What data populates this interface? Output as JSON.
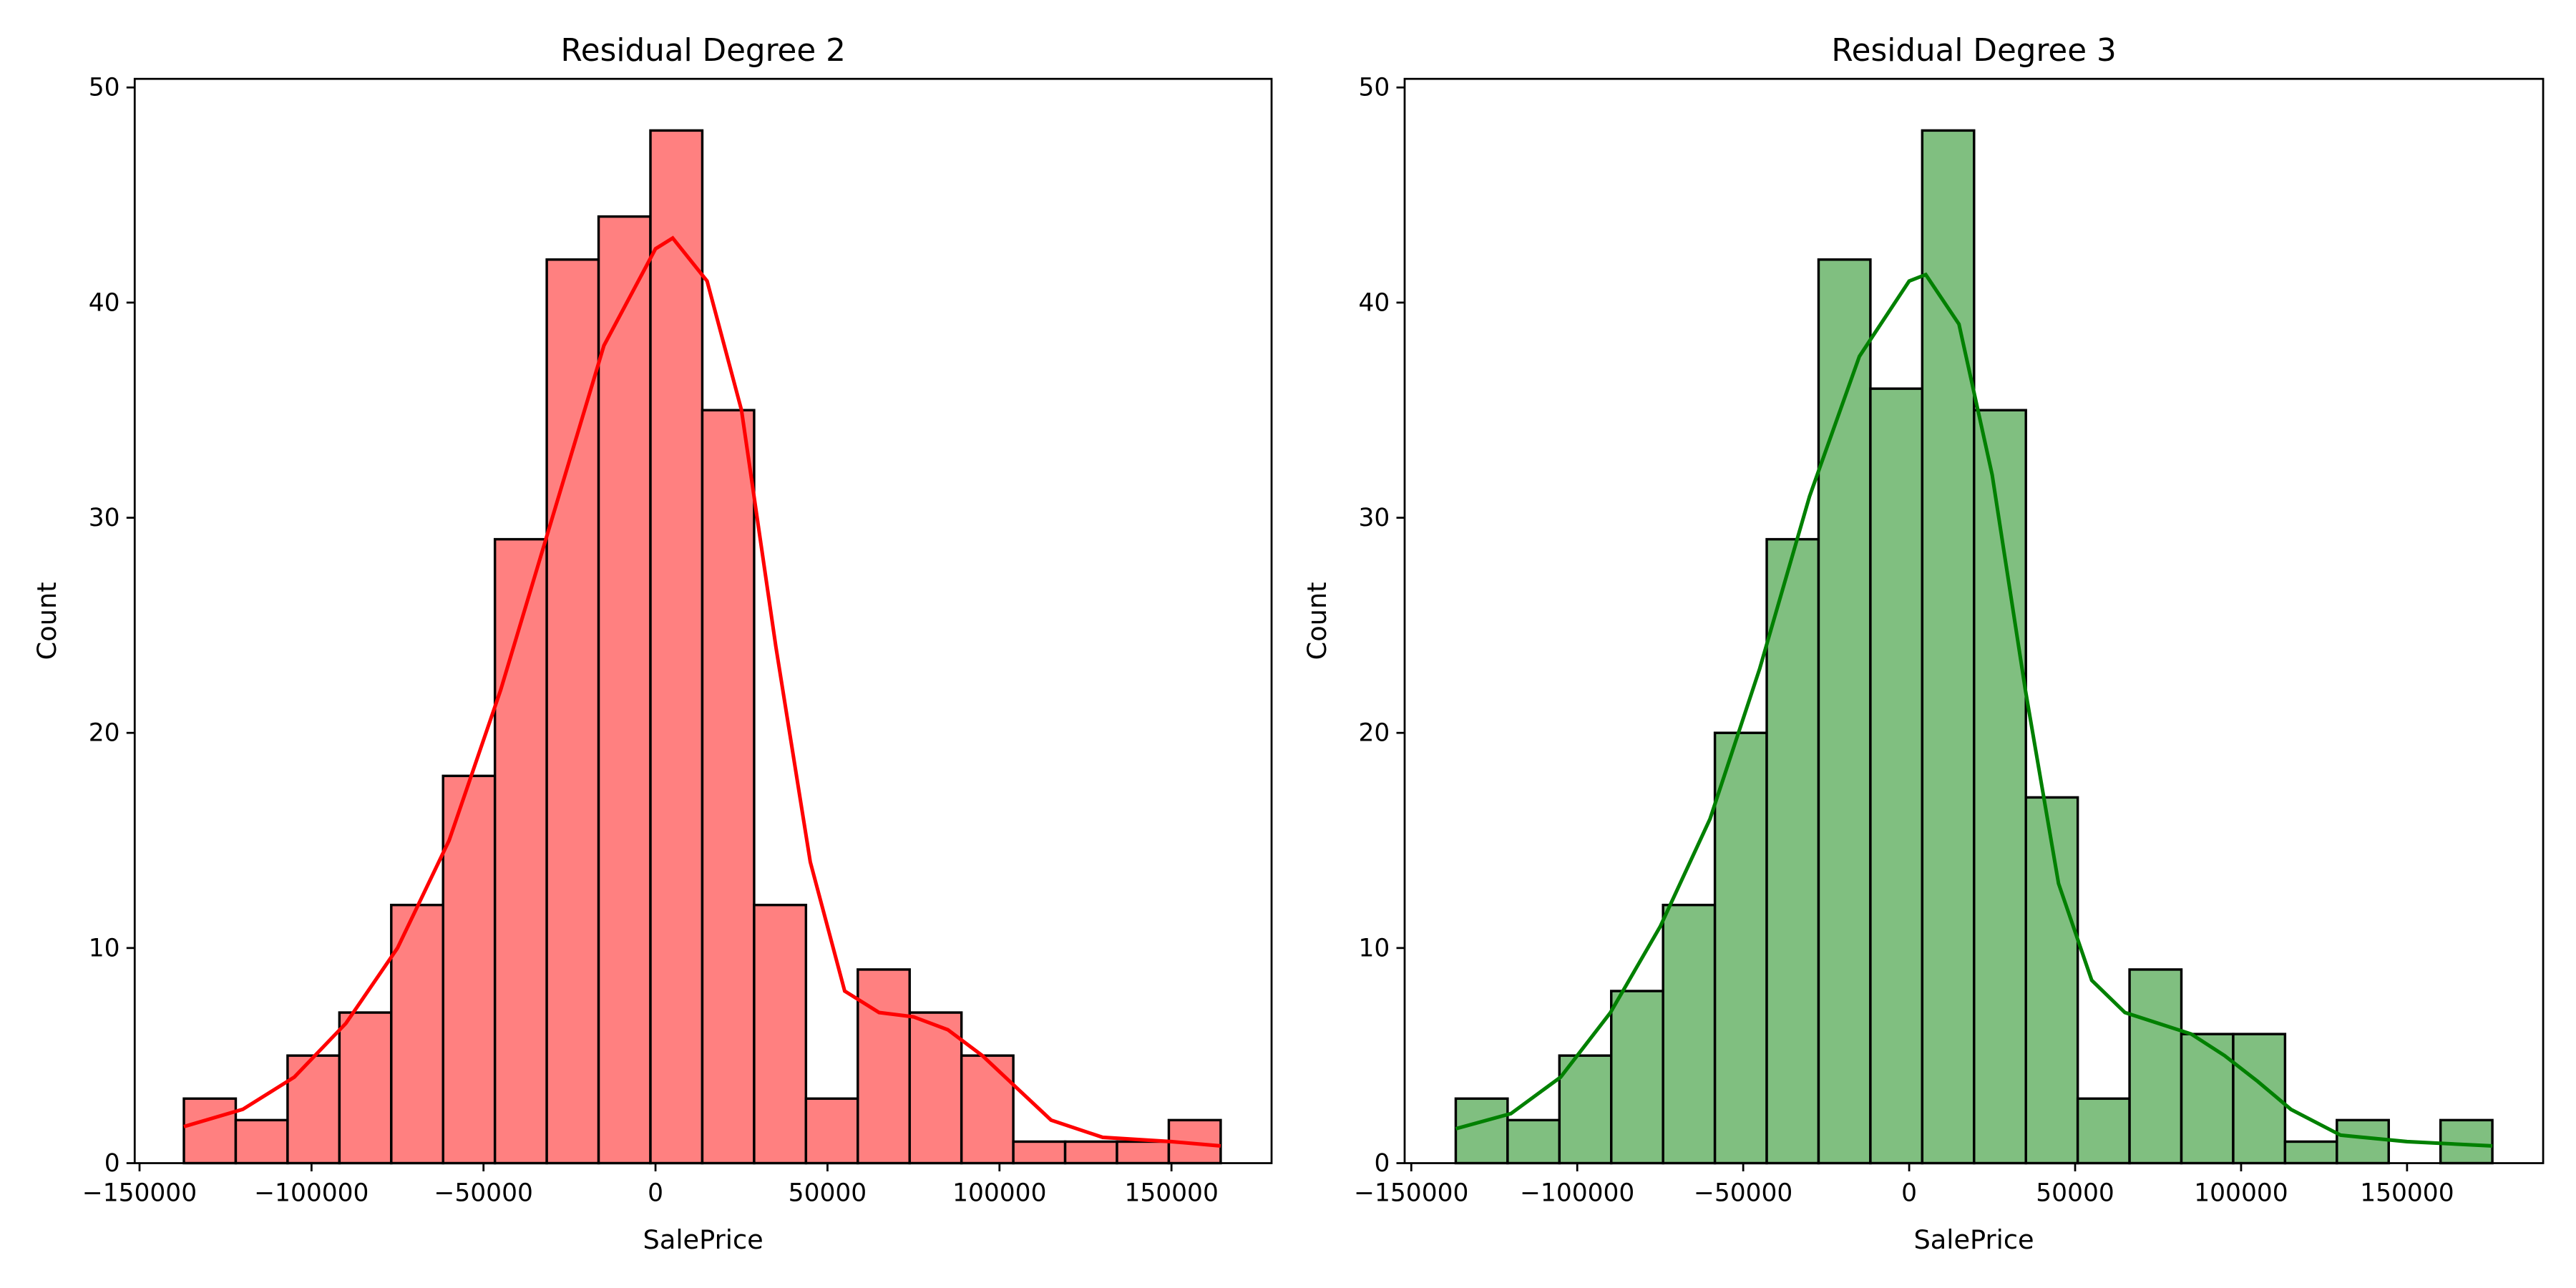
{
  "chart_data": [
    {
      "type": "histogram",
      "title": "Residual Degree 2",
      "xlabel": "SalePrice",
      "ylabel": "Count",
      "bins": [
        -137100,
        -122030,
        -106960,
        -91890,
        -76820,
        -61750,
        -46680,
        -31610,
        -16540,
        -1470,
        13600,
        28670,
        43740,
        58810,
        73880,
        88950,
        104020,
        119090,
        134160,
        149230,
        164300
      ],
      "values": [
        3,
        2,
        5,
        7,
        12,
        18,
        29,
        42,
        44,
        48,
        35,
        12,
        3,
        9,
        7,
        5,
        1,
        1,
        1,
        2
      ],
      "color": "#ff8080",
      "edgecolor": "#000000",
      "kde": {
        "color": "#ff0000",
        "x": [
          -137100,
          -120000,
          -105000,
          -90000,
          -75000,
          -60000,
          -45000,
          -30000,
          -15000,
          0,
          5000,
          15000,
          25000,
          35000,
          45000,
          55000,
          65000,
          75000,
          85000,
          95000,
          105000,
          115000,
          130000,
          150000,
          164300
        ],
        "values": [
          1.7,
          2.5,
          4,
          6.5,
          10,
          15,
          22,
          30,
          38,
          42.5,
          43,
          41,
          35,
          24,
          14,
          8,
          7,
          6.8,
          6.2,
          5,
          3.5,
          2,
          1.2,
          1,
          0.8
        ]
      },
      "xlim": [
        -151400,
        179100
      ],
      "ylim": [
        0,
        50.4
      ],
      "xticks": [
        {
          "value": -150000,
          "label": "−150000"
        },
        {
          "value": -100000,
          "label": "−100000"
        },
        {
          "value": -50000,
          "label": "−50000"
        },
        0,
        50000,
        100000,
        150000
      ],
      "yticks": [
        0,
        10,
        20,
        30,
        40,
        50
      ]
    },
    {
      "type": "histogram",
      "title": "Residual Degree 3",
      "xlabel": "SalePrice",
      "ylabel": "Count",
      "bins": [
        -136600,
        -120985,
        -105370,
        -89755,
        -74140,
        -58525,
        -42910,
        -27295,
        -11680,
        3935,
        19550,
        35165,
        50780,
        66395,
        82010,
        97625,
        113240,
        128855,
        144470,
        160085,
        175700
      ],
      "values": [
        3,
        2,
        5,
        8,
        12,
        20,
        29,
        42,
        36,
        48,
        35,
        17,
        3,
        9,
        6,
        6,
        1,
        2,
        0,
        2
      ],
      "color": "#80bf80",
      "edgecolor": "#000000",
      "kde": {
        "color": "#008000",
        "x": [
          -136600,
          -120000,
          -105000,
          -90000,
          -75000,
          -60000,
          -45000,
          -30000,
          -15000,
          0,
          5000,
          15000,
          25000,
          35000,
          45000,
          55000,
          65000,
          75000,
          85000,
          95000,
          105000,
          115000,
          130000,
          150000,
          175700
        ],
        "values": [
          1.6,
          2.3,
          4,
          7,
          11,
          16,
          23,
          31,
          37.5,
          41,
          41.3,
          39,
          32,
          22,
          13,
          8.5,
          7,
          6.5,
          6,
          5,
          3.8,
          2.5,
          1.3,
          1,
          0.8
        ]
      },
      "xlim": [
        -152000,
        191000
      ],
      "ylim": [
        0,
        50.4
      ],
      "xticks": [
        {
          "value": -150000,
          "label": "−150000"
        },
        {
          "value": -100000,
          "label": "−100000"
        },
        {
          "value": -50000,
          "label": "−50000"
        },
        0,
        50000,
        100000,
        150000
      ],
      "yticks": [
        0,
        10,
        20,
        30,
        40,
        50
      ]
    }
  ]
}
